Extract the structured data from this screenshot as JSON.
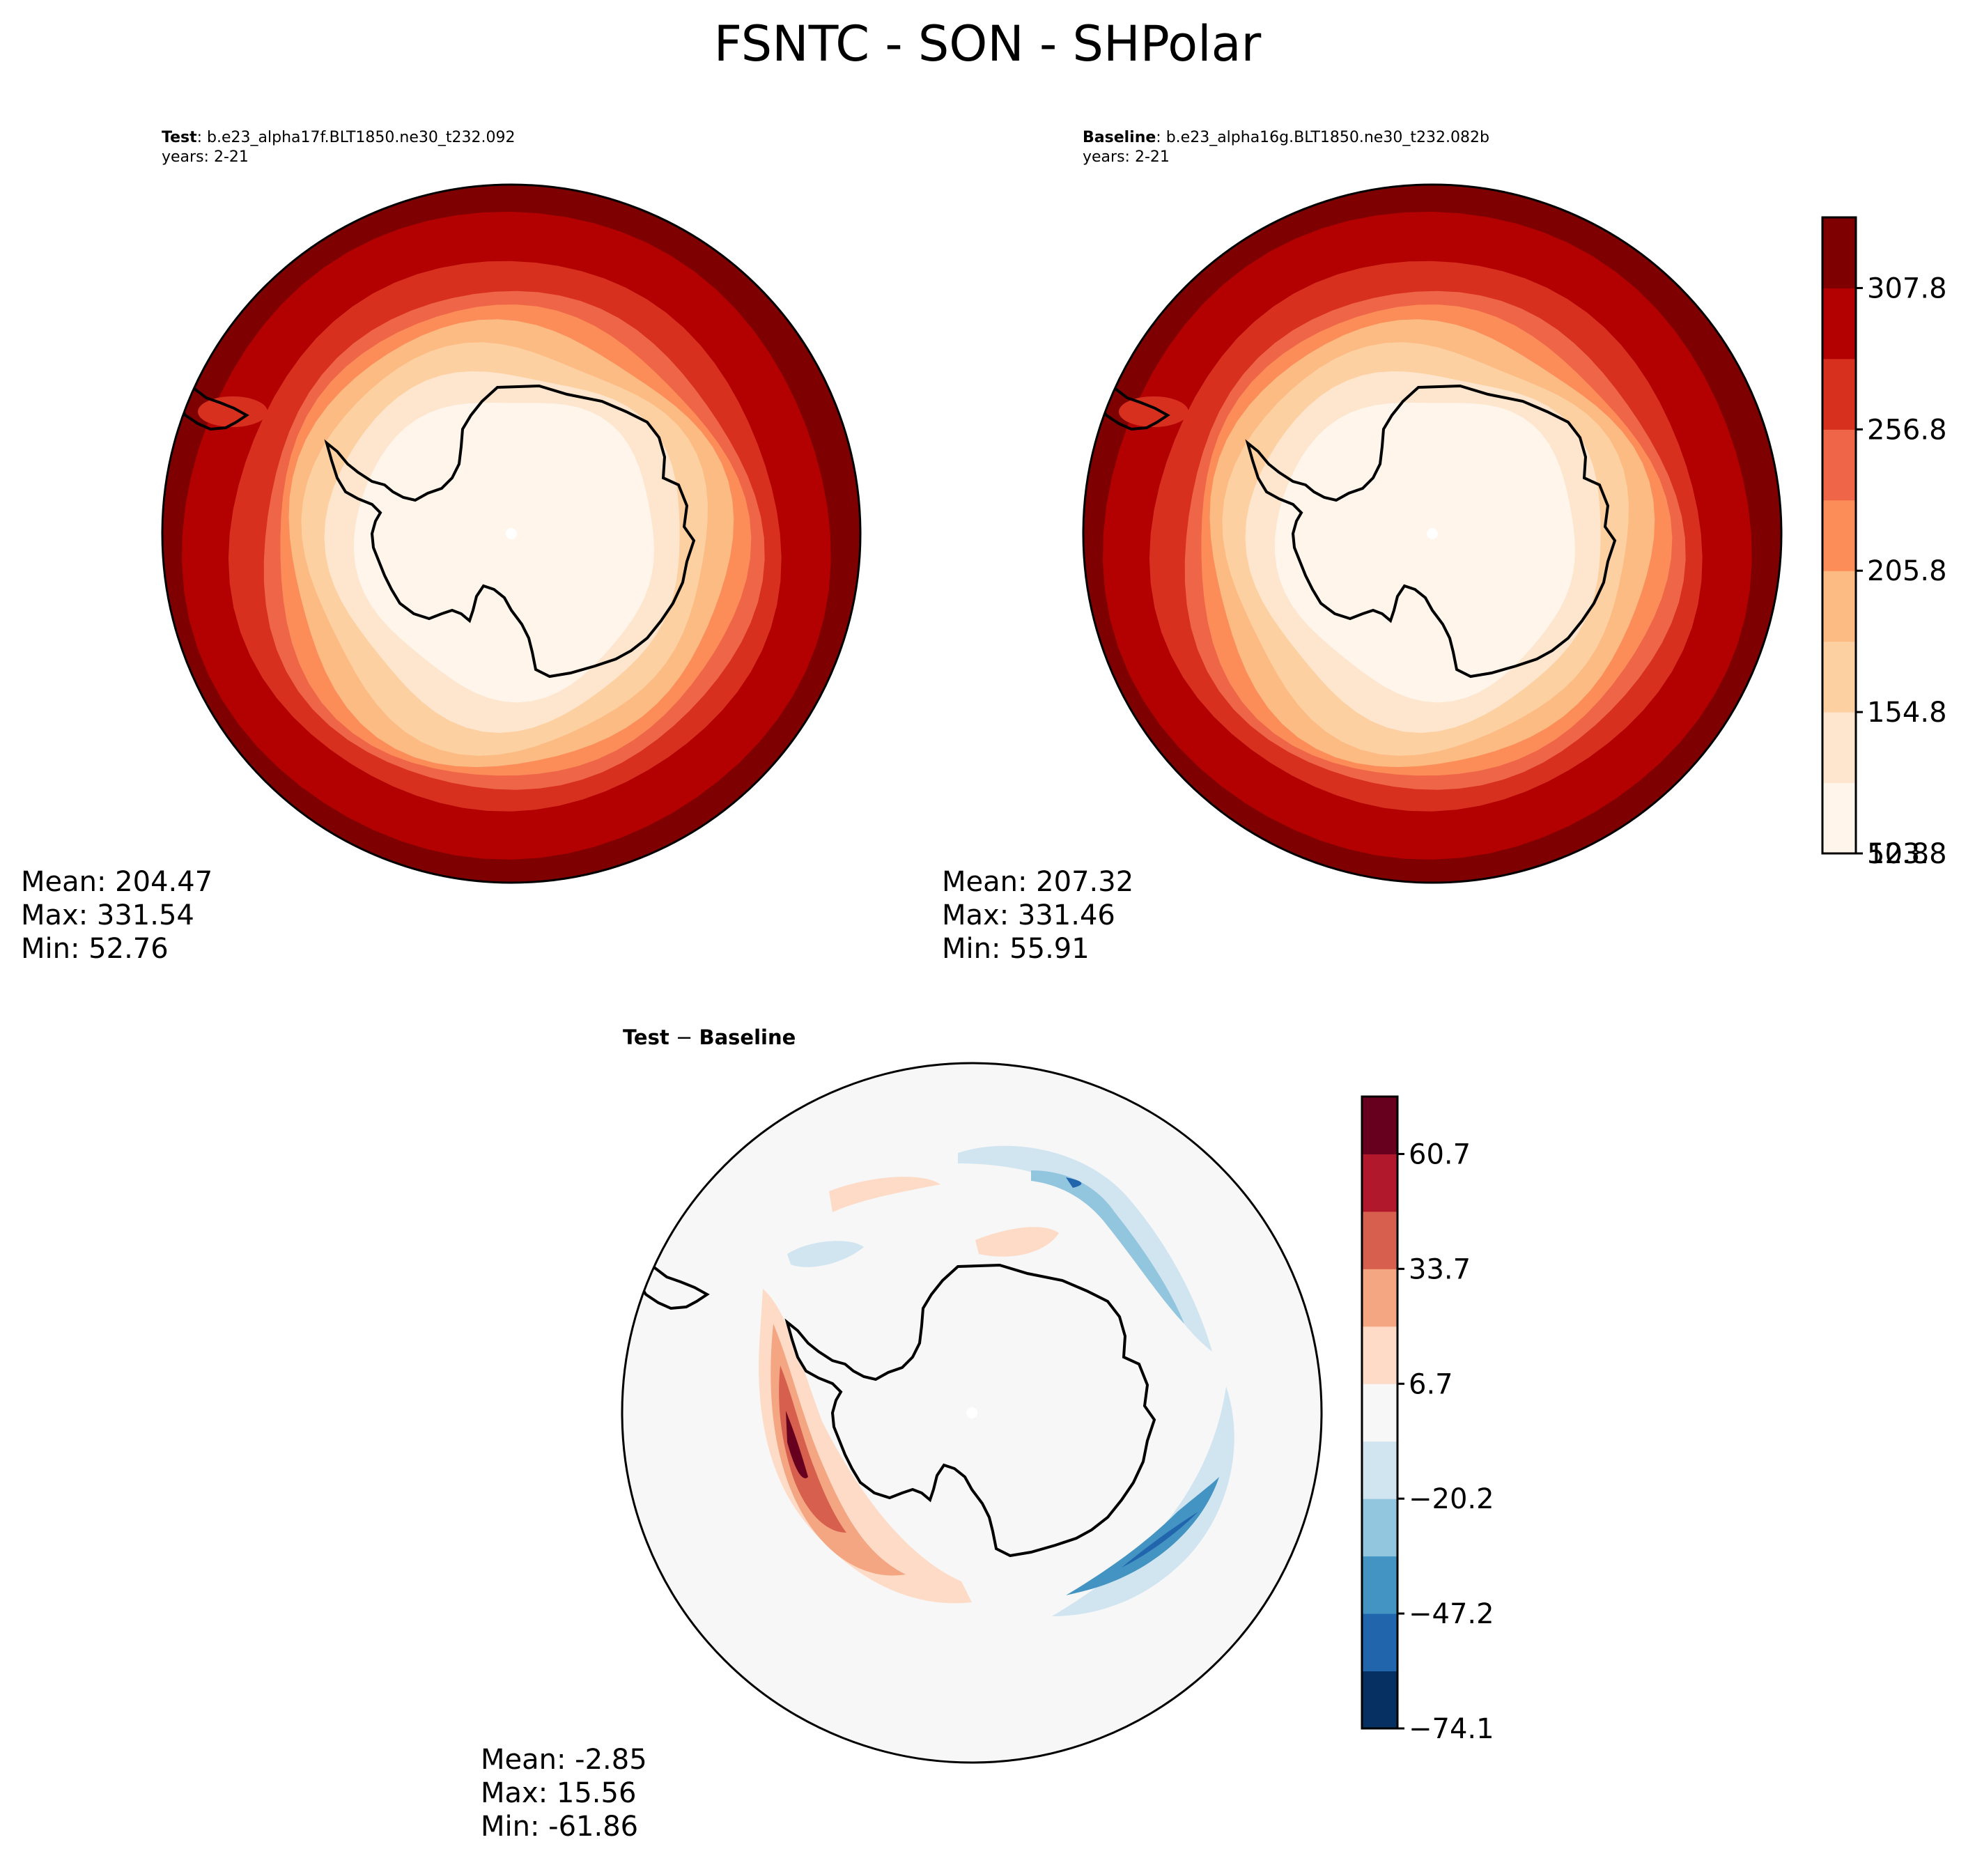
{
  "title": "FSNTC - SON - SHPolar",
  "colors": {
    "abs_levels": [
      "#fff5eb",
      "#fee6ce",
      "#fdd0a2",
      "#fdbb84",
      "#fc8d59",
      "#ef6548",
      "#d7301f",
      "#b30000",
      "#7f0000"
    ],
    "diff_levels": [
      "#053061",
      "#2166ac",
      "#4393c3",
      "#92c5de",
      "#d1e5f0",
      "#f7f7f7",
      "#fddbc7",
      "#f4a582",
      "#d6604d",
      "#b2182b",
      "#67001f"
    ]
  },
  "panels": {
    "test": {
      "label": "Test",
      "case": ": b.e23_alpha17f.BLT1850.ne30_t232.092",
      "years": "years: 2-21",
      "mean": "Mean: 204.47",
      "max": "Max: 331.54",
      "min": "Min: 52.76"
    },
    "baseline": {
      "label": "Baseline",
      "case": ": b.e23_alpha16g.BLT1850.ne30_t232.082b",
      "years": "years: 2-21",
      "mean": "Mean: 207.32",
      "max": "Max: 331.46",
      "min": "Min: 55.91"
    },
    "diff": {
      "label_a": "Test",
      "label_op": " − ",
      "label_b": "Baseline",
      "mean": "Mean: -2.85",
      "max": "Max: 15.56",
      "min": "Min: -61.86"
    }
  },
  "colorbars": {
    "abs": {
      "ticks": [
        "307.8",
        "256.8",
        "205.8",
        "154.8",
        "103.8",
        "52.8"
      ]
    },
    "diff": {
      "ticks": [
        "60.7",
        "33.7",
        "6.7",
        "−20.2",
        "−47.2",
        "−74.1"
      ]
    }
  }
}
